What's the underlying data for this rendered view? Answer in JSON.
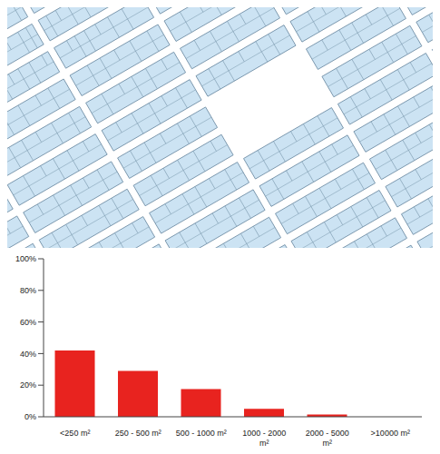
{
  "chart_data": {
    "type": "bar",
    "categories": [
      "<250 m²",
      "250 - 500 m²",
      "500 - 1000 m²",
      "1000 - 2000 m²",
      "2000 - 5000 m²",
      ">10000 m²"
    ],
    "values": [
      42,
      29,
      17.5,
      5,
      1.5,
      0
    ],
    "color": "#e8231f",
    "ylim": [
      0,
      100
    ],
    "yticks": [
      {
        "value": 0,
        "label": "0%"
      },
      {
        "value": 20,
        "label": "20%"
      },
      {
        "value": 40,
        "label": "40%"
      },
      {
        "value": 60,
        "label": "60%"
      },
      {
        "value": 80,
        "label": "80%"
      },
      {
        "value": 100,
        "label": "100%"
      }
    ],
    "grid": false
  }
}
